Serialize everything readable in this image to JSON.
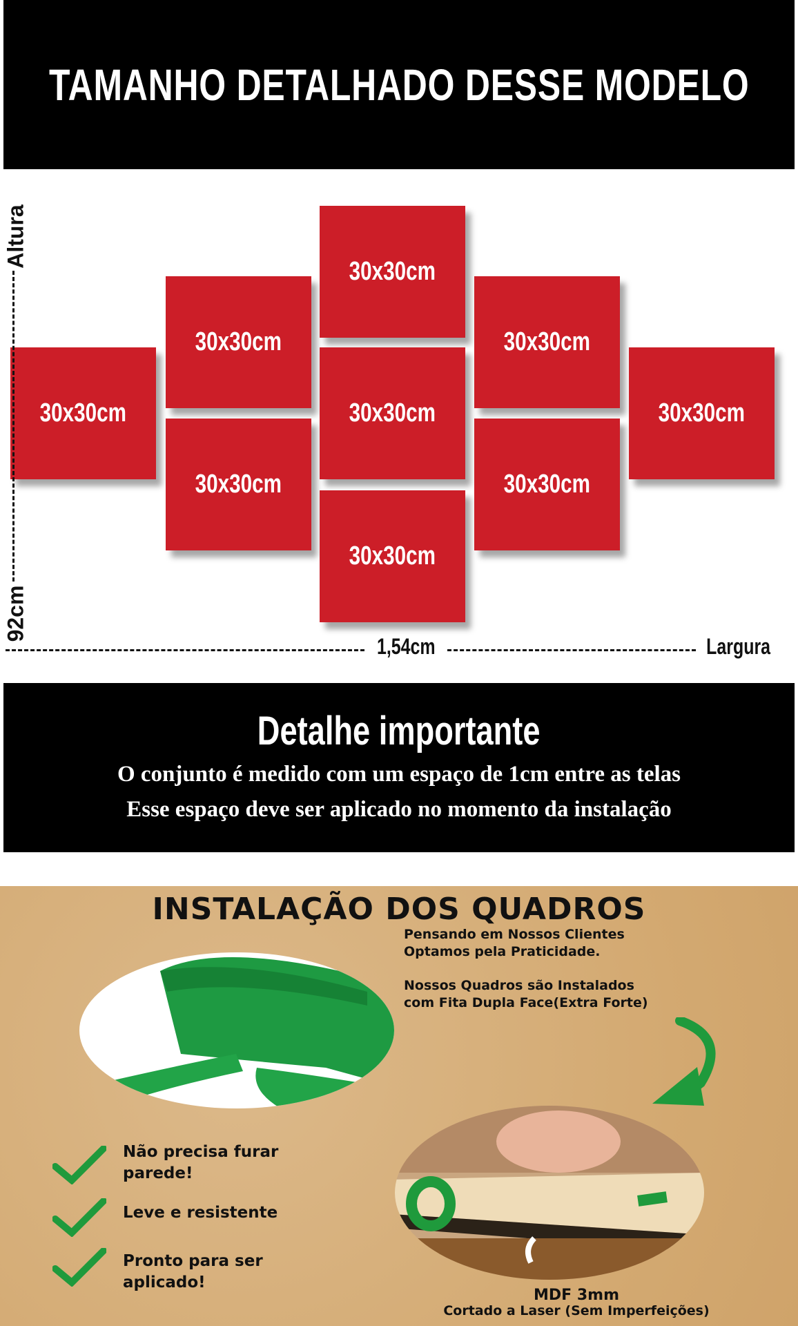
{
  "header": {
    "title": "TAMANHO DETALHADO DESSE MODELO"
  },
  "diagram": {
    "panels": [
      "30x30cm",
      "30x30cm",
      "30x30cm",
      "30x30cm",
      "30x30cm",
      "30x30cm",
      "30x30cm",
      "30x30cm",
      "30x30cm"
    ],
    "panel_color": "#cc1e28",
    "height_label": "Altura",
    "height_value": "92cm",
    "width_value": "1,54cm",
    "width_label": "Largura"
  },
  "notice": {
    "title": "Detalhe importante",
    "lines": [
      "O conjunto é medido com um espaço de 1cm entre as telas",
      "Esse espaço deve ser aplicado no momento da instalação"
    ]
  },
  "install": {
    "title": "INSTALAÇÃO DOS QUADROS",
    "intro": [
      "Pensando em Nossos Clientes",
      "Optamos pela Praticidade."
    ],
    "tape": [
      "Nossos Quadros são Instalados",
      "com Fita Dupla Face(Extra Forte)"
    ],
    "benefits": [
      [
        "Não precisa furar",
        "parede!"
      ],
      [
        "Leve e resistente"
      ],
      [
        "Pronto para ser",
        "aplicado!"
      ]
    ],
    "mdf": "MDF 3mm",
    "laser": "Cortado a Laser (Sem Imperfeições)",
    "accent": "#1f9a3c"
  }
}
